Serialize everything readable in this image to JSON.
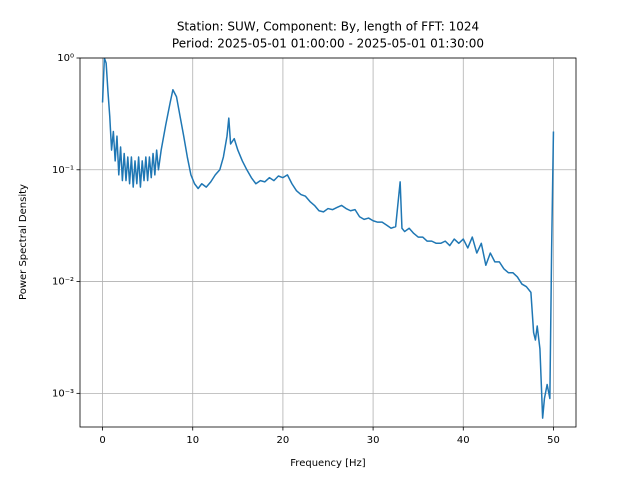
{
  "chart_data": {
    "type": "line",
    "title": [
      "Station: SUW, Component: By, length of FFT: 1024",
      "Period: 2025-05-01 01:00:00 - 2025-05-01 01:30:00"
    ],
    "x_label": "Frequency [Hz]",
    "y_label": "Power Spectral Density",
    "color": "#1f77b4",
    "log_y": true,
    "grid": true,
    "xlim": [
      -2.5,
      52.5
    ],
    "ylim": [
      0.0005,
      1
    ],
    "xticks": [
      0,
      10,
      20,
      30,
      40,
      50
    ],
    "yticks": [
      {
        "value": 0.001,
        "label": "10⁻³"
      },
      {
        "value": 0.01,
        "label": "10⁻²"
      },
      {
        "value": 0.1,
        "label": "10⁻¹"
      },
      {
        "value": 1,
        "label": "10⁰"
      }
    ],
    "x": [
      0,
      0.2,
      0.4,
      0.6,
      0.8,
      1.0,
      1.2,
      1.4,
      1.6,
      1.8,
      2.0,
      2.2,
      2.4,
      2.6,
      2.8,
      3.0,
      3.2,
      3.4,
      3.6,
      3.8,
      4.0,
      4.2,
      4.4,
      4.6,
      4.8,
      5.0,
      5.2,
      5.4,
      5.6,
      5.8,
      6.0,
      6.2,
      6.5,
      7.0,
      7.5,
      7.8,
      8.2,
      8.6,
      9.0,
      9.4,
      9.8,
      10.2,
      10.6,
      11.0,
      11.5,
      12.0,
      12.5,
      13.0,
      13.4,
      13.8,
      14.0,
      14.2,
      14.6,
      15.0,
      15.5,
      16.0,
      16.5,
      17.0,
      17.5,
      18.0,
      18.5,
      19.0,
      19.5,
      20.0,
      20.5,
      21.0,
      21.5,
      22,
      22.5,
      23,
      23.5,
      24,
      24.5,
      25,
      25.5,
      26,
      26.5,
      27,
      27.5,
      28,
      28.5,
      29,
      29.5,
      30,
      30.5,
      31,
      31.5,
      32,
      32.5,
      33.0,
      33.2,
      33.5,
      34,
      34.5,
      35,
      35.5,
      36,
      36.5,
      37,
      37.5,
      38,
      38.5,
      39,
      39.5,
      40,
      40.5,
      41,
      41.5,
      42,
      42.5,
      43,
      43.5,
      44,
      44.5,
      45,
      45.5,
      46,
      46.5,
      47,
      47.5,
      47.8,
      48,
      48.2,
      48.5,
      48.8,
      49,
      49.3,
      49.6,
      49.8,
      50
    ],
    "values": [
      0.4,
      1.0,
      0.9,
      0.5,
      0.3,
      0.15,
      0.22,
      0.12,
      0.2,
      0.09,
      0.16,
      0.08,
      0.14,
      0.08,
      0.13,
      0.075,
      0.13,
      0.07,
      0.12,
      0.075,
      0.13,
      0.07,
      0.12,
      0.08,
      0.13,
      0.08,
      0.13,
      0.085,
      0.14,
      0.09,
      0.15,
      0.1,
      0.15,
      0.25,
      0.4,
      0.52,
      0.45,
      0.3,
      0.2,
      0.13,
      0.09,
      0.075,
      0.068,
      0.075,
      0.07,
      0.078,
      0.09,
      0.1,
      0.13,
      0.2,
      0.29,
      0.17,
      0.19,
      0.15,
      0.12,
      0.1,
      0.085,
      0.075,
      0.08,
      0.078,
      0.085,
      0.08,
      0.088,
      0.085,
      0.09,
      0.075,
      0.065,
      0.06,
      0.058,
      0.052,
      0.048,
      0.043,
      0.042,
      0.045,
      0.044,
      0.046,
      0.048,
      0.045,
      0.043,
      0.044,
      0.038,
      0.036,
      0.037,
      0.035,
      0.034,
      0.034,
      0.032,
      0.03,
      0.031,
      0.078,
      0.03,
      0.028,
      0.03,
      0.027,
      0.025,
      0.025,
      0.023,
      0.023,
      0.022,
      0.022,
      0.023,
      0.021,
      0.024,
      0.022,
      0.024,
      0.02,
      0.025,
      0.018,
      0.022,
      0.014,
      0.018,
      0.015,
      0.015,
      0.013,
      0.012,
      0.012,
      0.011,
      0.0095,
      0.009,
      0.008,
      0.0035,
      0.003,
      0.004,
      0.0025,
      0.0006,
      0.0009,
      0.0012,
      0.0009,
      0.02,
      0.22
    ]
  }
}
